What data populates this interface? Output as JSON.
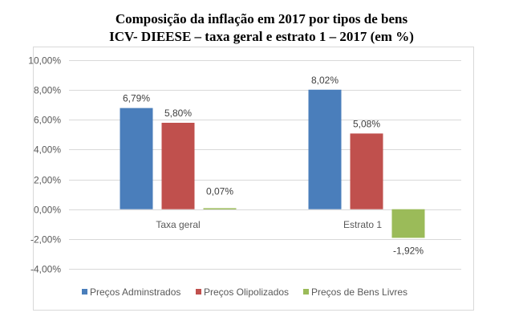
{
  "chart_data": {
    "type": "bar",
    "title": "Composição da inflação em 2017 por tipos de bens",
    "subtitle": "ICV- DIEESE – taxa geral e estrato 1 – 2017 (em %)",
    "xlabel": "",
    "ylabel": "",
    "categories": [
      "Taxa geral",
      "Estrato 1"
    ],
    "series": [
      {
        "name": "Preços Adminstrados",
        "color": "#4a7ebb",
        "values": [
          6.79,
          8.02
        ],
        "labels": [
          "6,79%",
          "8,02%"
        ]
      },
      {
        "name": "Preços Olipolizados",
        "color": "#c0504d",
        "values": [
          5.8,
          5.08
        ],
        "labels": [
          "5,80%",
          "5,08%"
        ]
      },
      {
        "name": "Preços de Bens Livres",
        "color": "#9bbb59",
        "values": [
          0.07,
          -1.92
        ],
        "labels": [
          "0,07%",
          "-1,92%"
        ]
      }
    ],
    "ylim": [
      -4,
      10
    ],
    "yticks": [
      10,
      8,
      6,
      4,
      2,
      0,
      -2,
      -4
    ],
    "ytick_labels": [
      "10,00%",
      "8,00%",
      "6,00%",
      "4,00%",
      "2,00%",
      "0,00%",
      "-2,00%",
      "-4,00%"
    ],
    "grid": true,
    "legend_position": "bottom"
  }
}
